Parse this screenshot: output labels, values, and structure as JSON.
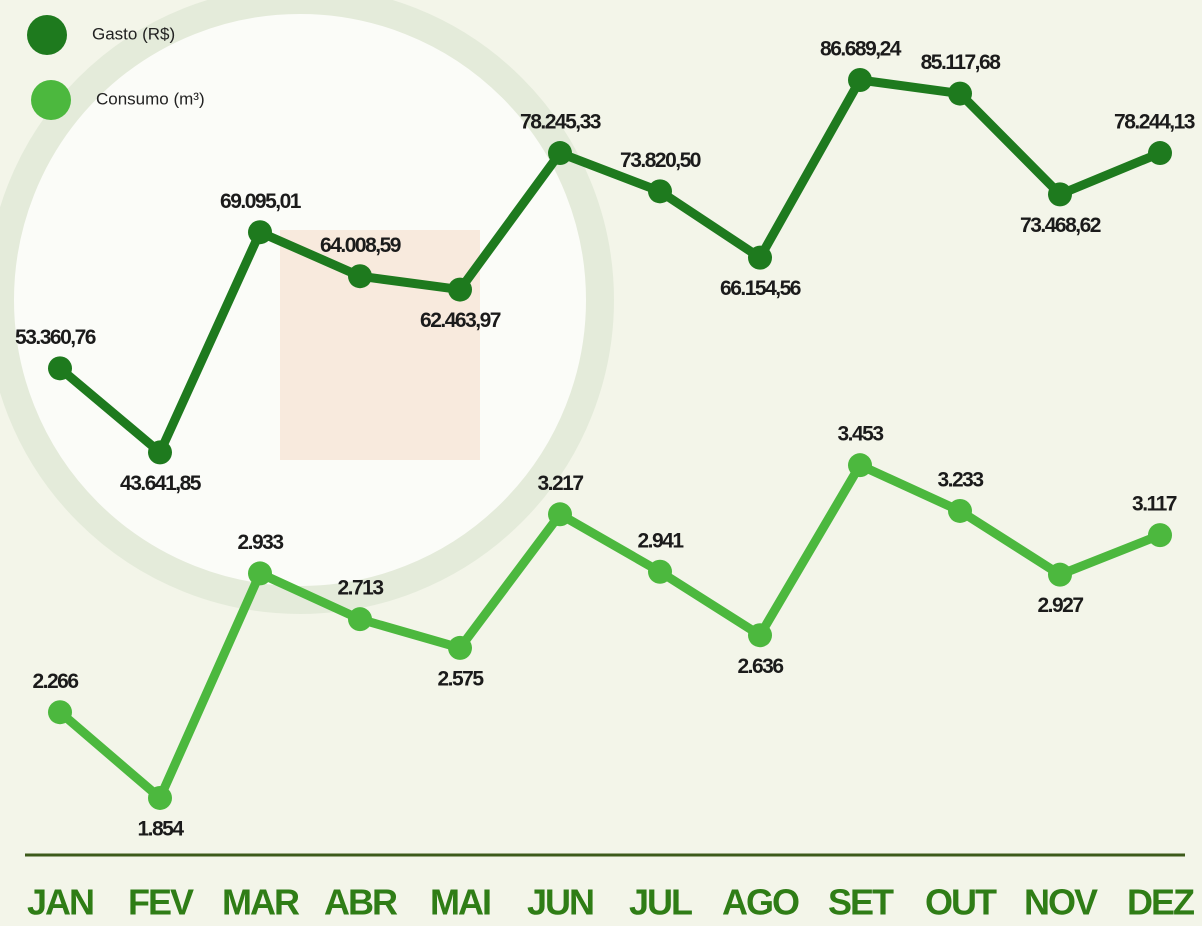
{
  "chart_data": {
    "type": "line",
    "categories": [
      "JAN",
      "FEV",
      "MAR",
      "ABR",
      "MAI",
      "JUN",
      "JUL",
      "AGO",
      "SET",
      "OUT",
      "NOV",
      "DEZ"
    ],
    "series": [
      {
        "name": "Gasto (R$)",
        "color": "#1e7a1e",
        "values": [
          53360.76,
          43641.85,
          69095.01,
          64008.59,
          62463.97,
          78245.33,
          73820.5,
          66154.56,
          86689.24,
          85117.68,
          73468.62,
          78244.13
        ],
        "value_labels": [
          "53.360,76",
          "43.641,85",
          "69.095,01",
          "64.008,59",
          "62.463,97",
          "78.245,33",
          "73.820,50",
          "66.154,56",
          "86.689,24",
          "85.117,68",
          "73.468,62",
          "78.244,13"
        ]
      },
      {
        "name": "Consumo (m³)",
        "color": "#4cb83e",
        "axis": "y2",
        "values": [
          2266,
          1854,
          2933,
          2713,
          2575,
          3217,
          2941,
          2636,
          3453,
          3233,
          2927,
          3117
        ],
        "value_labels": [
          "2.266",
          "1.854",
          "2.933",
          "2.713",
          "2.575",
          "3.217",
          "2.941",
          "2.636",
          "3.453",
          "3.233",
          "2.927",
          "3.117"
        ]
      }
    ],
    "ylim": [
      0,
      89000
    ],
    "y2lim": [
      1700,
      5400
    ],
    "legend": "top-left"
  }
}
